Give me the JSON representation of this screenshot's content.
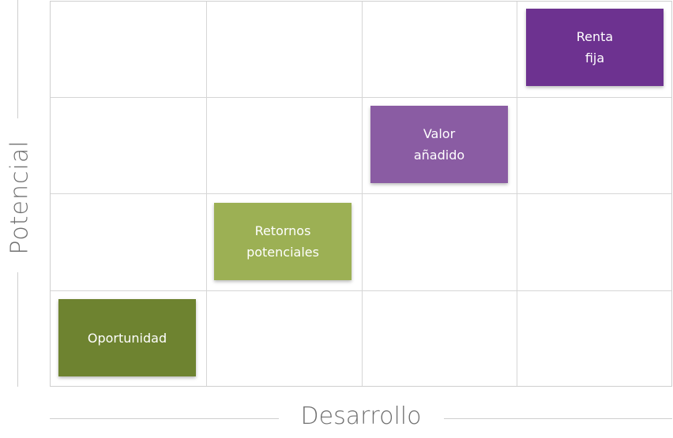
{
  "axes": {
    "x_label": "Desarrollo",
    "y_label": "Potencial"
  },
  "grid": {
    "columns": 4,
    "rows": 4
  },
  "boxes": [
    {
      "label": "Oportunidad",
      "column": 1,
      "row": 1,
      "color": "#6e8330"
    },
    {
      "label": "Retornos\npotenciales",
      "column": 2,
      "row": 2,
      "color": "#9cb054"
    },
    {
      "label": "Valor\nañadido",
      "column": 3,
      "row": 3,
      "color": "#8a5ca3"
    },
    {
      "label": "Renta\nfija",
      "column": 4,
      "row": 4,
      "color": "#6d3290"
    }
  ]
}
